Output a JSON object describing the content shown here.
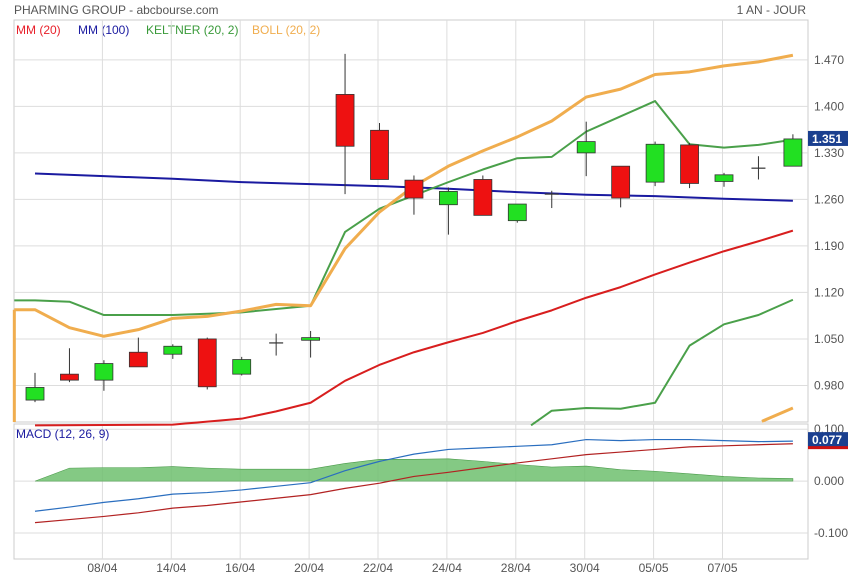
{
  "header": {
    "title": "PHARMING GROUP - abcbourse.com",
    "period": "1 AN - JOUR"
  },
  "legend": [
    {
      "label": "MM (20)",
      "color": "#e8202a"
    },
    {
      "label": "MM (100)",
      "color": "#1a1aa0"
    },
    {
      "label": "KELTNER (20, 2)",
      "color": "#3a9a3a"
    },
    {
      "label": "BOLL (20, 2)",
      "color": "#f0ad4e"
    }
  ],
  "colors": {
    "up": "#22e022",
    "down": "#ee1111",
    "mm20": "#d81e1e",
    "mm100": "#1a1aa0",
    "keltner": "#4aa04a",
    "boll": "#f0ad4e",
    "macd": "#2a6ebf",
    "signal": "#b22222",
    "hist": "#6fbf6f",
    "grid": "#dddddd"
  },
  "chart_data": [
    {
      "type": "candlestick",
      "ylim": [
        0.925,
        1.53
      ],
      "yticks": [
        0.98,
        1.05,
        1.12,
        1.19,
        1.26,
        1.33,
        1.4,
        1.47
      ],
      "yticklabels": [
        "0.980",
        "1.050",
        "1.120",
        "1.190",
        "1.260",
        "1.330",
        "1.400",
        "1.470"
      ],
      "last_value": "1.351",
      "x_labels": [
        {
          "i": 2,
          "label": "08/04"
        },
        {
          "i": 4,
          "label": "14/04"
        },
        {
          "i": 6,
          "label": "16/04"
        },
        {
          "i": 8,
          "label": "20/04"
        },
        {
          "i": 10,
          "label": "22/04"
        },
        {
          "i": 12,
          "label": "24/04"
        },
        {
          "i": 14,
          "label": "28/04"
        },
        {
          "i": 16,
          "label": "30/04"
        },
        {
          "i": 18,
          "label": "05/05"
        },
        {
          "i": 20,
          "label": "07/05"
        }
      ],
      "candles": [
        {
          "o": 0.958,
          "h": 0.999,
          "l": 0.955,
          "c": 0.977
        },
        {
          "o": 0.997,
          "h": 1.036,
          "l": 0.985,
          "c": 0.988
        },
        {
          "o": 0.988,
          "h": 1.018,
          "l": 0.972,
          "c": 1.013
        },
        {
          "o": 1.03,
          "h": 1.052,
          "l": 1.008,
          "c": 1.008
        },
        {
          "o": 1.027,
          "h": 1.042,
          "l": 1.02,
          "c": 1.039
        },
        {
          "o": 1.05,
          "h": 1.052,
          "l": 0.974,
          "c": 0.978
        },
        {
          "o": 0.997,
          "h": 1.023,
          "l": 0.995,
          "c": 1.019
        },
        {
          "o": 1.043,
          "h": 1.058,
          "l": 1.025,
          "c": 1.044
        },
        {
          "o": 1.048,
          "h": 1.062,
          "l": 1.022,
          "c": 1.052
        },
        {
          "o": 1.418,
          "h": 1.479,
          "l": 1.268,
          "c": 1.34
        },
        {
          "o": 1.364,
          "h": 1.375,
          "l": 1.29,
          "c": 1.29
        },
        {
          "o": 1.289,
          "h": 1.296,
          "l": 1.237,
          "c": 1.262
        },
        {
          "o": 1.252,
          "h": 1.278,
          "l": 1.207,
          "c": 1.272
        },
        {
          "o": 1.29,
          "h": 1.296,
          "l": 1.236,
          "c": 1.236
        },
        {
          "o": 1.228,
          "h": 1.252,
          "l": 1.225,
          "c": 1.253
        },
        {
          "o": 1.268,
          "h": 1.273,
          "l": 1.247,
          "c": 1.265
        },
        {
          "o": 1.33,
          "h": 1.377,
          "l": 1.295,
          "c": 1.347
        },
        {
          "o": 1.31,
          "h": 1.31,
          "l": 1.248,
          "c": 1.262
        },
        {
          "o": 1.286,
          "h": 1.347,
          "l": 1.28,
          "c": 1.343
        },
        {
          "o": 1.342,
          "h": 1.345,
          "l": 1.277,
          "c": 1.284
        },
        {
          "o": 1.287,
          "h": 1.3,
          "l": 1.279,
          "c": 1.297
        },
        {
          "o": 1.305,
          "h": 1.325,
          "l": 1.29,
          "c": 1.307
        },
        {
          "o": 1.31,
          "h": 1.358,
          "l": 1.31,
          "c": 1.351
        }
      ],
      "series": [
        {
          "name": "MM (20)",
          "x": [
            0,
            4,
            6,
            7,
            8,
            9,
            10,
            11,
            12,
            13,
            14,
            15,
            16,
            17,
            18,
            19,
            20,
            21,
            22
          ],
          "values": [
            0.92,
            0.921,
            0.93,
            0.941,
            0.954,
            0.987,
            1.011,
            1.03,
            1.045,
            1.059,
            1.077,
            1.093,
            1.112,
            1.128,
            1.147,
            1.165,
            1.182,
            1.197,
            1.213
          ]
        },
        {
          "name": "MM (100)",
          "x": [
            0,
            2,
            4,
            6,
            8,
            10,
            12,
            14,
            16,
            18,
            20,
            22
          ],
          "values": [
            1.299,
            1.295,
            1.291,
            1.286,
            1.283,
            1.28,
            1.276,
            1.271,
            1.267,
            1.265,
            1.261,
            1.258
          ]
        },
        {
          "name": "KELTNER upper",
          "x": [
            -0.6,
            0,
            1,
            2,
            3,
            4,
            5,
            6,
            7,
            8,
            9,
            10,
            11,
            12,
            13,
            14,
            15,
            16,
            17,
            18,
            19,
            20,
            21,
            22
          ],
          "values": [
            1.108,
            1.108,
            1.106,
            1.086,
            1.086,
            1.086,
            1.088,
            1.09,
            1.095,
            1.1,
            1.211,
            1.246,
            1.266,
            1.286,
            1.305,
            1.322,
            1.324,
            1.362,
            1.385,
            1.408,
            1.343,
            1.338,
            1.342,
            1.35
          ]
        },
        {
          "name": "KELTNER lower",
          "x": [
            14.4,
            15,
            16,
            17,
            18,
            19,
            20,
            21,
            22
          ],
          "values": [
            0.92,
            0.942,
            0.946,
            0.945,
            0.954,
            1.04,
            1.072,
            1.086,
            1.109
          ]
        },
        {
          "name": "BOLL upper",
          "x": [
            -0.6,
            0,
            1,
            2,
            3,
            4,
            5,
            6,
            7,
            8,
            9,
            10,
            11,
            12,
            13,
            14,
            15,
            16,
            17,
            18,
            19,
            20,
            21,
            22
          ],
          "values": [
            1.094,
            1.094,
            1.067,
            1.054,
            1.064,
            1.081,
            1.084,
            1.092,
            1.102,
            1.1,
            1.186,
            1.241,
            1.28,
            1.31,
            1.333,
            1.354,
            1.378,
            1.414,
            1.426,
            1.448,
            1.452,
            1.461,
            1.467,
            1.477
          ]
        },
        {
          "name": "BOLL lower",
          "x": [
            21.1,
            22
          ],
          "values": [
            0.926,
            0.946
          ]
        },
        {
          "name": "BOLL start",
          "x": [
            -0.6,
            -0.6
          ],
          "values": [
            0.925,
            1.094
          ]
        }
      ]
    },
    {
      "type": "line",
      "title": "MACD (12, 26, 9)",
      "ylim": [
        -0.15,
        0.11
      ],
      "yticks": [
        -0.1,
        0,
        0.1
      ],
      "yticklabels": [
        "-0.100",
        "0.000",
        "0.100"
      ],
      "last_value": "0.077",
      "series": [
        {
          "name": "macd",
          "values": [
            -0.058,
            -0.05,
            -0.041,
            -0.034,
            -0.025,
            -0.022,
            -0.017,
            -0.01,
            -0.003,
            0.02,
            0.038,
            0.052,
            0.061,
            0.064,
            0.067,
            0.07,
            0.08,
            0.078,
            0.08,
            0.08,
            0.078,
            0.076,
            0.077
          ]
        },
        {
          "name": "signal",
          "values": [
            -0.08,
            -0.074,
            -0.068,
            -0.061,
            -0.052,
            -0.047,
            -0.04,
            -0.033,
            -0.026,
            -0.014,
            -0.004,
            0.009,
            0.017,
            0.026,
            0.035,
            0.043,
            0.051,
            0.056,
            0.061,
            0.066,
            0.068,
            0.07,
            0.072
          ]
        },
        {
          "name": "histogram",
          "values": [
            0.0,
            0.025,
            0.026,
            0.026,
            0.028,
            0.025,
            0.023,
            0.023,
            0.023,
            0.034,
            0.042,
            0.042,
            0.043,
            0.038,
            0.032,
            0.027,
            0.029,
            0.022,
            0.019,
            0.014,
            0.009,
            0.006,
            0.005
          ]
        }
      ]
    }
  ]
}
